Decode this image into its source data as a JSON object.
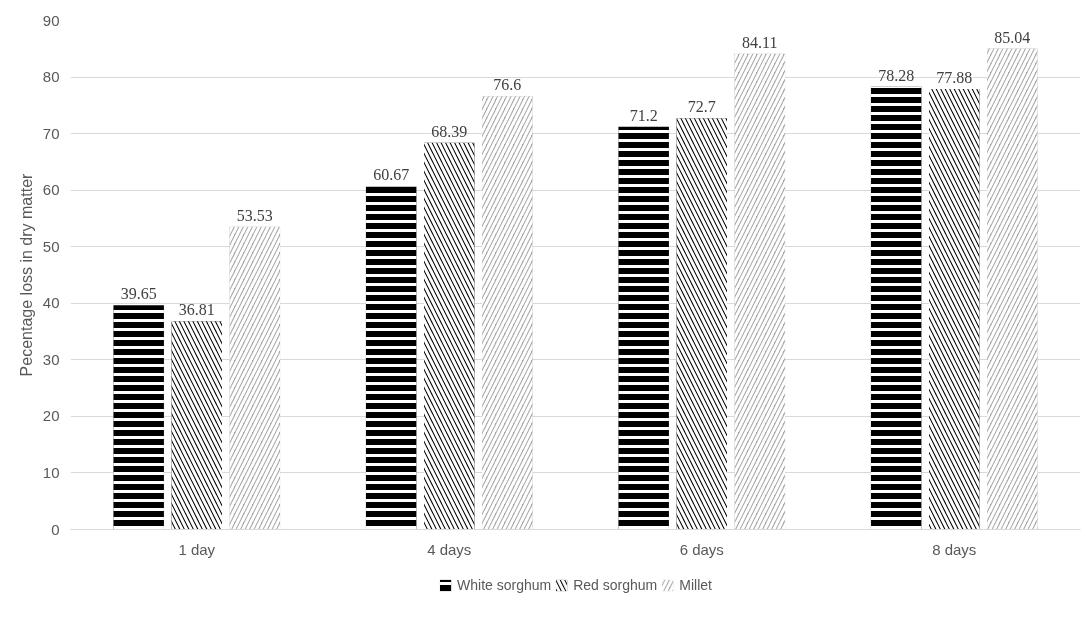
{
  "chart_data": {
    "type": "bar",
    "ylabel": "Pecentage loss in dry matter",
    "categories": [
      "1 day",
      "4 days",
      "6 days",
      "8 days"
    ],
    "series": [
      {
        "name": "White sorghum",
        "color": "#000000",
        "values": [
          39.65,
          60.67,
          71.2,
          78.28
        ]
      },
      {
        "name": "Red sorghum",
        "color": "#000000",
        "values": [
          36.81,
          68.39,
          72.7,
          77.88
        ]
      },
      {
        "name": "Millet",
        "color": "#a6a6a6",
        "values": [
          53.53,
          76.6,
          84.11,
          85.04
        ]
      }
    ],
    "ylim": [
      0,
      90
    ],
    "yticks": [
      0,
      10,
      20,
      30,
      40,
      50,
      60,
      70,
      80,
      90
    ],
    "grid": "y",
    "legend": "bottom",
    "data_labels": true
  }
}
